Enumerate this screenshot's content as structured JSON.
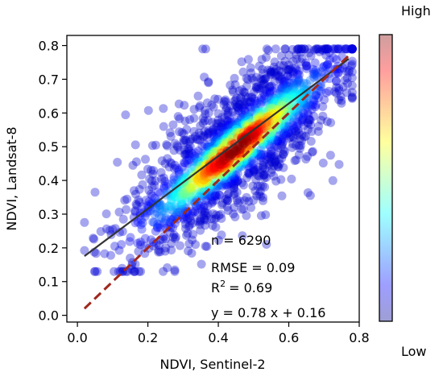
{
  "chart_data": {
    "type": "scatter",
    "title": "",
    "xlabel": "NDVI, Sentinel-2",
    "ylabel": "NDVI, Landsat-8",
    "xlim": [
      -0.03,
      0.8
    ],
    "ylim": [
      -0.02,
      0.83
    ],
    "xticks": [
      "0.0",
      "0.2",
      "0.4",
      "0.6",
      "0.8"
    ],
    "yticks": [
      "0.0",
      "0.1",
      "0.2",
      "0.3",
      "0.4",
      "0.5",
      "0.6",
      "0.7",
      "0.8"
    ],
    "xtick_values": [
      0.0,
      0.2,
      0.4,
      0.6,
      0.8
    ],
    "ytick_values": [
      0.0,
      0.1,
      0.2,
      0.3,
      0.4,
      0.5,
      0.6,
      0.7,
      0.8
    ],
    "grid": false,
    "colormap": "jet (point density)",
    "point_opacity": 0.35,
    "n_points": 6290,
    "fit_line": {
      "slope": 0.78,
      "intercept": 0.16,
      "x_range": [
        0.02,
        0.77
      ],
      "color": "#333333",
      "style": "solid"
    },
    "one_to_one_line": {
      "x_range": [
        0.02,
        0.77
      ],
      "color": "#a0281e",
      "style": "dashed"
    },
    "stats": {
      "n": "n = 6290",
      "rmse": "RMSE = 0.09",
      "r2_prefix": "R",
      "r2_sup": "2",
      "r2_value": "=  0.69",
      "equation": "y = 0.78 x + 0.16"
    },
    "colorbar": {
      "high_label": "High",
      "low_label": "Low",
      "colors": [
        "#00008f",
        "#0000ff",
        "#0080ff",
        "#00ffff",
        "#80ff80",
        "#ffff00",
        "#ff8000",
        "#ff0000",
        "#800000"
      ]
    }
  }
}
